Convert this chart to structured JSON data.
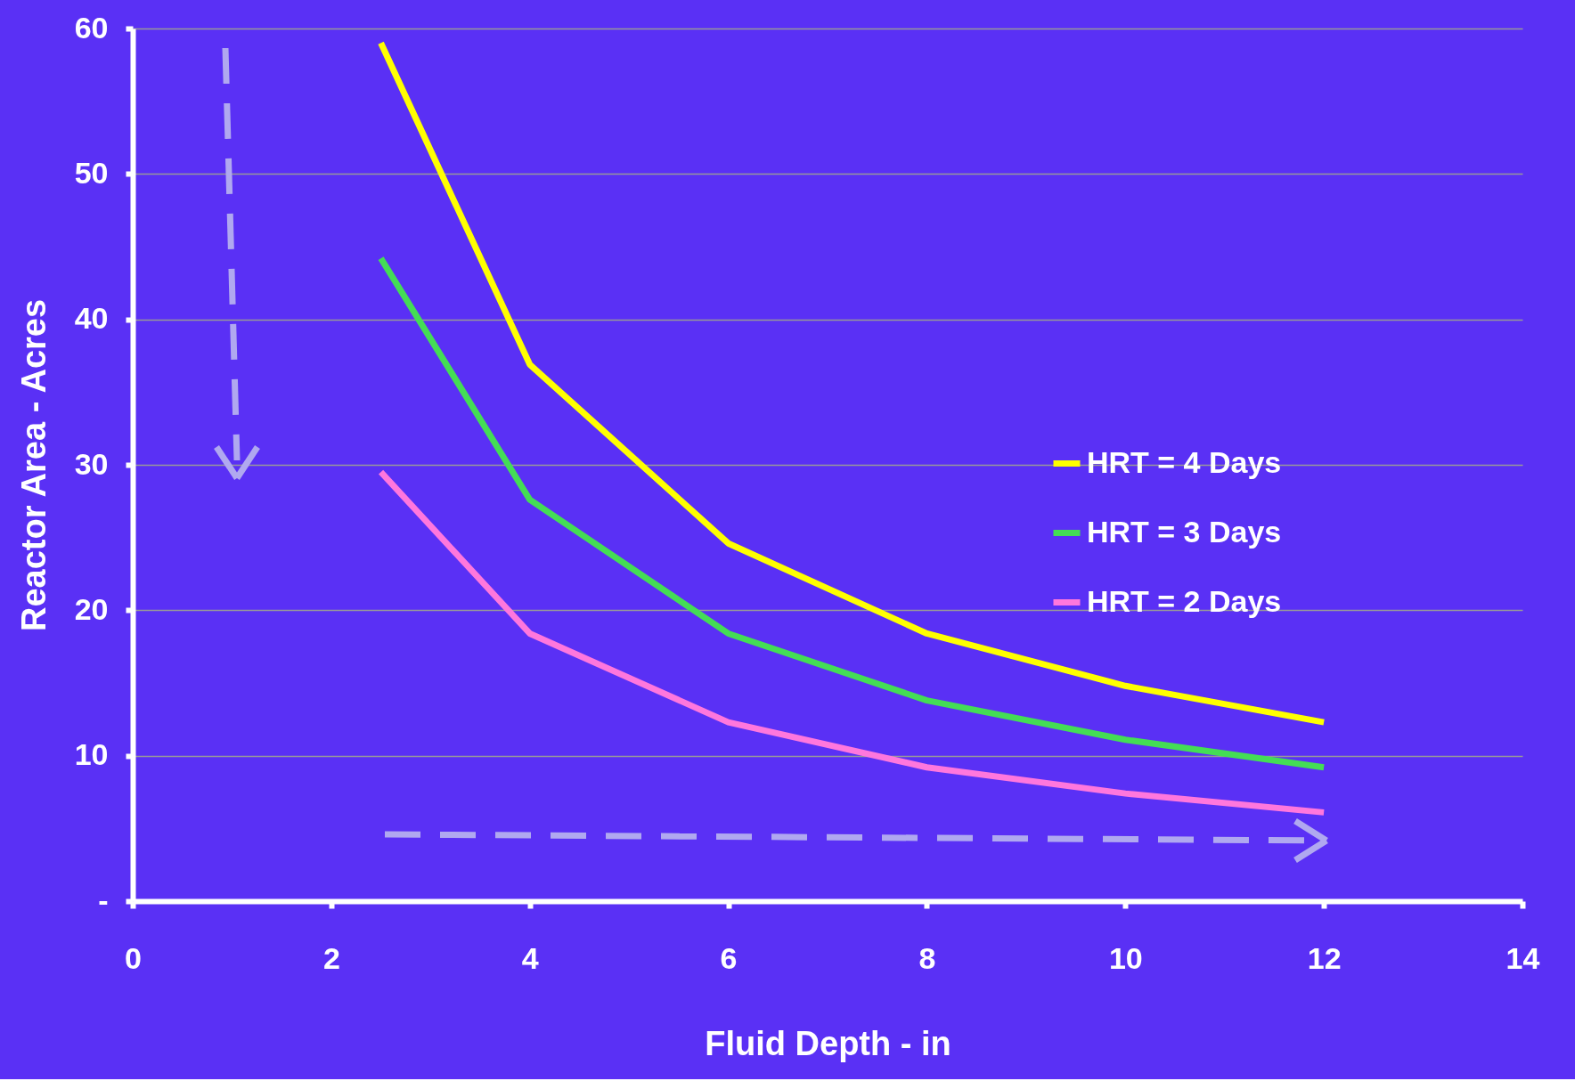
{
  "chart_data": {
    "type": "line",
    "xlabel": "Fluid Depth - in",
    "ylabel": "Reactor Area - Acres",
    "x": [
      2.5,
      4,
      6,
      8,
      10,
      12
    ],
    "series": [
      {
        "name": "HRT = 4 Days",
        "color": "#ffff00",
        "values": [
          59,
          36.9,
          24.6,
          18.4,
          14.8,
          12.3
        ]
      },
      {
        "name": "HRT = 3 Days",
        "color": "#44dd55",
        "values": [
          44.2,
          27.6,
          18.4,
          13.8,
          11.1,
          9.2
        ]
      },
      {
        "name": "HRT = 2 Days",
        "color": "#ff77dd",
        "values": [
          29.5,
          18.4,
          12.3,
          9.2,
          7.4,
          6.1
        ]
      }
    ],
    "xlim": [
      0,
      14
    ],
    "xticks": [
      0,
      2,
      4,
      6,
      8,
      10,
      12,
      14
    ],
    "ylim": [
      0,
      60
    ],
    "yticks": [
      {
        "value": 0,
        "label": "-"
      },
      10,
      20,
      30,
      40,
      50,
      60
    ],
    "grid": "y",
    "legend": "right",
    "marker": "none",
    "line_style": "solid"
  }
}
